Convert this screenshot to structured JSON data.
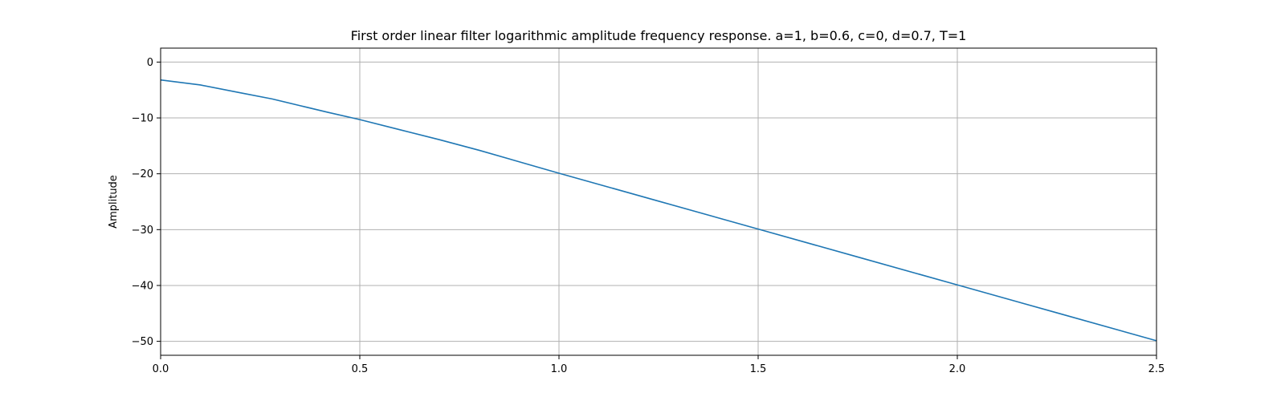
{
  "chart_data": {
    "type": "line",
    "title": "First order linear filter logarithmic amplitude frequency response. a=1, b=0.6, c=0, d=0.7, T=1",
    "xlabel": "",
    "ylabel": "Amplitude",
    "xlim": [
      0.0,
      2.5
    ],
    "ylim": [
      -52.5,
      2.5
    ],
    "xticks": [
      {
        "value": 0.0,
        "label": "0.0"
      },
      {
        "value": 0.5,
        "label": "0.5"
      },
      {
        "value": 1.0,
        "label": "1.0"
      },
      {
        "value": 1.5,
        "label": "1.5"
      },
      {
        "value": 2.0,
        "label": "2.0"
      },
      {
        "value": 2.5,
        "label": "2.5"
      }
    ],
    "yticks": [
      {
        "value": 0,
        "label": "0"
      },
      {
        "value": -10,
        "label": "−10"
      },
      {
        "value": -20,
        "label": "−20"
      },
      {
        "value": -30,
        "label": "−30"
      },
      {
        "value": -40,
        "label": "−40"
      },
      {
        "value": -50,
        "label": "−50"
      }
    ],
    "grid": true,
    "series": [
      {
        "color": "#1f77b4",
        "x": [
          0.0,
          0.1,
          0.2,
          0.28,
          0.35,
          0.42,
          0.5,
          0.6,
          0.7,
          0.8,
          1.0,
          1.25,
          1.5,
          1.75,
          2.0,
          2.25,
          2.5
        ],
        "y": [
          -3.2,
          -4.1,
          -5.5,
          -6.6,
          -7.8,
          -9.0,
          -10.3,
          -12.1,
          -13.9,
          -15.8,
          -19.9,
          -24.9,
          -29.9,
          -34.9,
          -39.9,
          -44.9,
          -49.9
        ]
      }
    ]
  }
}
